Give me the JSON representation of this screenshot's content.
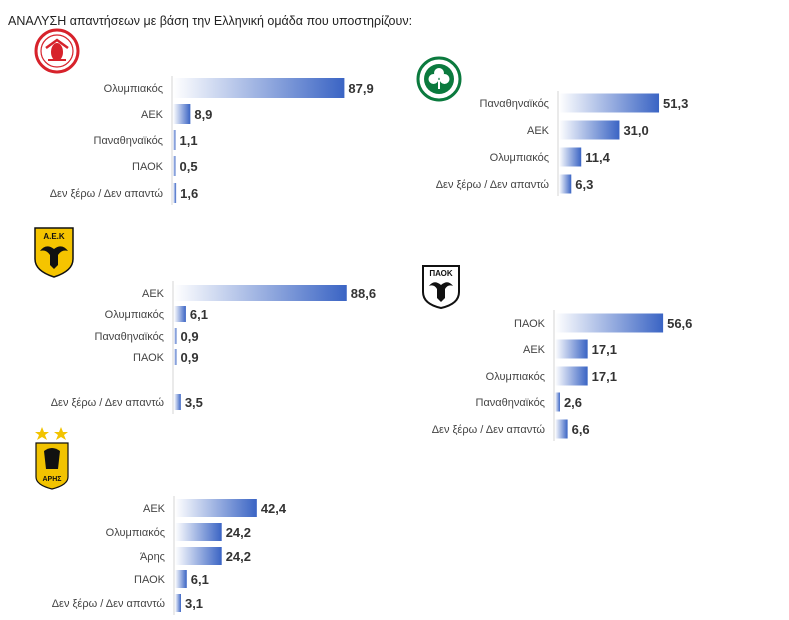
{
  "title": "ΑΝΑΛΥΣΗ απαντήσεων με βάση την Ελληνική ομάδα που υποστηρίζουν:",
  "colors": {
    "bar_light": "#ffffff",
    "bar_dark": "#3a64c4"
  },
  "logos": {
    "olympiacos": {
      "icon": "olympiacos-crest-icon"
    },
    "panathinaikos": {
      "icon": "panathinaikos-clover-icon"
    },
    "aek": {
      "icon": "aek-eagle-icon",
      "text": "Α.Ε.Κ"
    },
    "paok": {
      "icon": "paok-eagle-icon",
      "text": "ΠΑΟΚ"
    },
    "aris": {
      "icon": "aris-crest-icon",
      "text": "ΑΡΗΣ"
    }
  },
  "chart_data": [
    {
      "type": "bar",
      "orientation": "horizontal",
      "team": "olympiacos",
      "categories": [
        "Ολυμπιακός",
        "ΑΕΚ",
        "Παναθηναϊκός",
        "ΠΑΟΚ",
        "Δεν ξέρω / Δεν απαντώ"
      ],
      "values": [
        87.9,
        8.9,
        1.1,
        0.5,
        1.6
      ],
      "labels": [
        "87,9",
        "8,9",
        "1,1",
        "0,5",
        "1,6"
      ],
      "xlim": [
        0,
        100
      ]
    },
    {
      "type": "bar",
      "orientation": "horizontal",
      "team": "panathinaikos",
      "categories": [
        "Παναθηναϊκός",
        "ΑΕΚ",
        "Ολυμπιακός",
        "Δεν ξέρω / Δεν απαντώ"
      ],
      "values": [
        51.3,
        31.0,
        11.4,
        6.3
      ],
      "labels": [
        "51,3",
        "31,0",
        "11,4",
        "6,3"
      ],
      "xlim": [
        0,
        100
      ]
    },
    {
      "type": "bar",
      "orientation": "horizontal",
      "team": "aek",
      "categories": [
        "ΑΕΚ",
        "Ολυμπιακός",
        "Παναθηναϊκός",
        "ΠΑΟΚ",
        "Δεν ξέρω / Δεν απαντώ"
      ],
      "values": [
        88.6,
        6.1,
        0.9,
        0.9,
        3.5
      ],
      "labels": [
        "88,6",
        "6,1",
        "0,9",
        "0,9",
        "3,5"
      ],
      "xlim": [
        0,
        100
      ]
    },
    {
      "type": "bar",
      "orientation": "horizontal",
      "team": "paok",
      "categories": [
        "ΠΑΟΚ",
        "ΑΕΚ",
        "Ολυμπιακός",
        "Παναθηναϊκός",
        "Δεν ξέρω / Δεν απαντώ"
      ],
      "values": [
        56.6,
        17.1,
        17.1,
        2.6,
        6.6
      ],
      "labels": [
        "56,6",
        "17,1",
        "17,1",
        "2,6",
        "6,6"
      ],
      "xlim": [
        0,
        100
      ]
    },
    {
      "type": "bar",
      "orientation": "horizontal",
      "team": "aris",
      "categories": [
        "ΑΕΚ",
        "Ολυμπιακός",
        "Άρης",
        "ΠΑΟΚ",
        "Δεν ξέρω / Δεν απαντώ"
      ],
      "values": [
        42.4,
        24.2,
        24.2,
        6.1,
        3.1
      ],
      "labels": [
        "42,4",
        "24,2",
        "24,2",
        "6,1",
        "3,1"
      ],
      "xlim": [
        0,
        100
      ]
    }
  ]
}
